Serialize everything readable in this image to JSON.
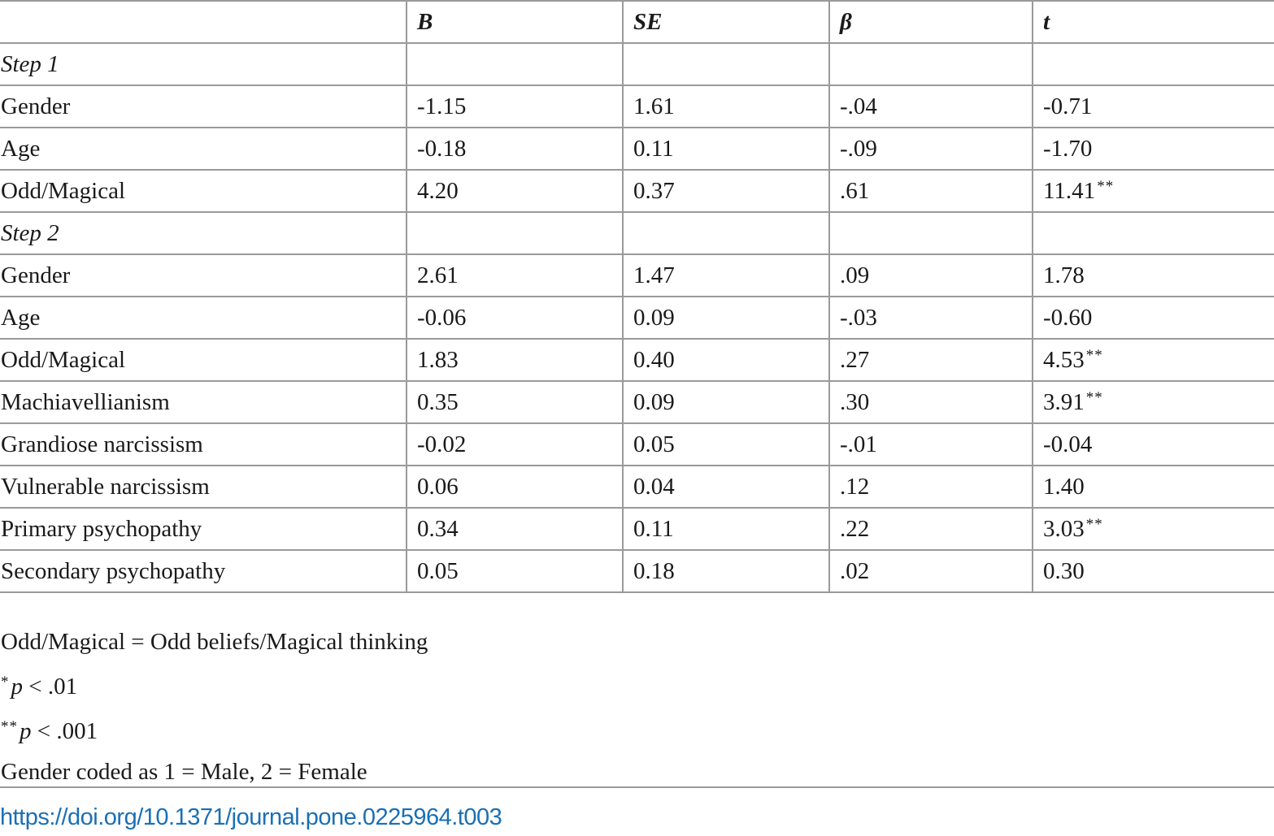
{
  "table": {
    "headers": [
      "",
      "B",
      "SE",
      "β",
      "t"
    ],
    "rows": [
      {
        "type": "section",
        "cells": [
          "Step 1",
          "",
          "",
          "",
          ""
        ]
      },
      {
        "type": "data",
        "cells": [
          "Gender",
          "-1.15",
          "1.61",
          "-.04",
          "-0.71"
        ],
        "sig": ""
      },
      {
        "type": "data",
        "cells": [
          "Age",
          "-0.18",
          "0.11",
          "-.09",
          "-1.70"
        ],
        "sig": ""
      },
      {
        "type": "data",
        "cells": [
          "Odd/Magical",
          "4.20",
          "0.37",
          ".61",
          "11.41"
        ],
        "sig": "**"
      },
      {
        "type": "section",
        "cells": [
          "Step 2",
          "",
          "",
          "",
          ""
        ]
      },
      {
        "type": "data",
        "cells": [
          "Gender",
          "2.61",
          "1.47",
          ".09",
          "1.78"
        ],
        "sig": ""
      },
      {
        "type": "data",
        "cells": [
          "Age",
          "-0.06",
          "0.09",
          "-.03",
          "-0.60"
        ],
        "sig": ""
      },
      {
        "type": "data",
        "cells": [
          "Odd/Magical",
          "1.83",
          "0.40",
          ".27",
          "4.53"
        ],
        "sig": "**"
      },
      {
        "type": "data",
        "cells": [
          "Machiavellianism",
          "0.35",
          "0.09",
          ".30",
          "3.91"
        ],
        "sig": "**"
      },
      {
        "type": "data",
        "cells": [
          "Grandiose narcissism",
          "-0.02",
          "0.05",
          "-.01",
          "-0.04"
        ],
        "sig": ""
      },
      {
        "type": "data",
        "cells": [
          "Vulnerable narcissism",
          "0.06",
          "0.04",
          ".12",
          "1.40"
        ],
        "sig": ""
      },
      {
        "type": "data",
        "cells": [
          "Primary psychopathy",
          "0.34",
          "0.11",
          ".22",
          "3.03"
        ],
        "sig": "**"
      },
      {
        "type": "data",
        "cells": [
          "Secondary psychopathy",
          "0.05",
          "0.18",
          ".02",
          "0.30"
        ],
        "sig": ""
      }
    ]
  },
  "notes": {
    "abbrev": "Odd/Magical = Odd beliefs/Magical thinking",
    "sig1_mark": "*",
    "sig1_p": "p",
    "sig1_text": " < .01",
    "sig2_mark": "**",
    "sig2_p": "p",
    "sig2_text": " < .001",
    "gender": "Gender coded as 1 = Male, 2 = Female"
  },
  "doi": "https://doi.org/10.1371/journal.pone.0225964.t003"
}
